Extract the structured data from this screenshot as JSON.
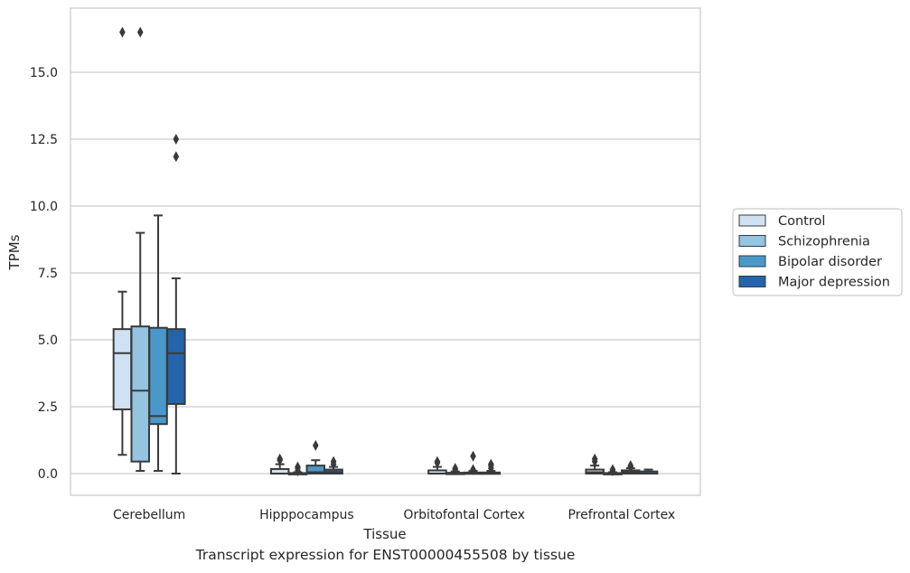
{
  "caption": "Transcript expression for ENST00000455508 by tissue",
  "chart_data": {
    "type": "box",
    "xlabel": "Tissue",
    "ylabel": "TPMs",
    "categories": [
      "Cerebellum",
      "Hipppocampus",
      "Orbitofontal Cortex",
      "Prefrontal Cortex"
    ],
    "yticks": [
      "0.0",
      "2.5",
      "5.0",
      "7.5",
      "10.0",
      "12.5",
      "15.0"
    ],
    "ytick_values": [
      0,
      2.5,
      5,
      7.5,
      10,
      12.5,
      15
    ],
    "ylim": [
      -0.8,
      17.3
    ],
    "grid": true,
    "legend_position": "right",
    "series": [
      {
        "name": "Control",
        "color": "#d0e1f2",
        "boxes": [
          {
            "whisker_low": 0.7,
            "q1": 2.4,
            "median": 4.5,
            "q3": 5.4,
            "whisker_high": 6.8,
            "outliers": [
              16.5
            ]
          },
          {
            "whisker_low": 0.0,
            "q1": 0.0,
            "median": 0.0,
            "q3": 0.17,
            "whisker_high": 0.35,
            "outliers": [
              0.5,
              0.55
            ]
          },
          {
            "whisker_low": 0.0,
            "q1": 0.0,
            "median": 0.0,
            "q3": 0.12,
            "whisker_high": 0.25,
            "outliers": [
              0.4,
              0.45
            ]
          },
          {
            "whisker_low": 0.0,
            "q1": 0.0,
            "median": 0.05,
            "q3": 0.15,
            "whisker_high": 0.3,
            "outliers": [
              0.45,
              0.55
            ]
          }
        ]
      },
      {
        "name": "Schizophrenia",
        "color": "#94c4df",
        "boxes": [
          {
            "whisker_low": 0.1,
            "q1": 0.45,
            "median": 3.1,
            "q3": 5.5,
            "whisker_high": 9.0,
            "outliers": [
              16.5
            ]
          },
          {
            "whisker_low": 0.0,
            "q1": 0.0,
            "median": 0.0,
            "q3": 0.02,
            "whisker_high": 0.05,
            "outliers": [
              0.1,
              0.2,
              0.25
            ]
          },
          {
            "whisker_low": 0.0,
            "q1": 0.0,
            "median": 0.0,
            "q3": 0.03,
            "whisker_high": 0.08,
            "outliers": [
              0.15,
              0.2
            ]
          },
          {
            "whisker_low": 0.0,
            "q1": 0.0,
            "median": 0.0,
            "q3": 0.02,
            "whisker_high": 0.05,
            "outliers": [
              0.1,
              0.15
            ]
          }
        ]
      },
      {
        "name": "Bipolar disorder",
        "color": "#4a98c9",
        "boxes": [
          {
            "whisker_low": 0.1,
            "q1": 1.85,
            "median": 2.15,
            "q3": 5.45,
            "whisker_high": 9.65,
            "outliers": []
          },
          {
            "whisker_low": 0.0,
            "q1": 0.0,
            "median": 0.05,
            "q3": 0.3,
            "whisker_high": 0.5,
            "outliers": [
              1.05
            ]
          },
          {
            "whisker_low": 0.0,
            "q1": 0.0,
            "median": 0.0,
            "q3": 0.04,
            "whisker_high": 0.1,
            "outliers": [
              0.15,
              0.65
            ]
          },
          {
            "whisker_low": 0.0,
            "q1": 0.0,
            "median": 0.05,
            "q3": 0.12,
            "whisker_high": 0.2,
            "outliers": [
              0.25,
              0.3
            ]
          }
        ]
      },
      {
        "name": "Major depression",
        "color": "#2364aa",
        "boxes": [
          {
            "whisker_low": 0.0,
            "q1": 2.6,
            "median": 4.5,
            "q3": 5.4,
            "whisker_high": 7.3,
            "outliers": [
              11.85,
              12.5
            ]
          },
          {
            "whisker_low": 0.0,
            "q1": 0.0,
            "median": 0.05,
            "q3": 0.15,
            "whisker_high": 0.25,
            "outliers": [
              0.35,
              0.45
            ]
          },
          {
            "whisker_low": 0.0,
            "q1": 0.0,
            "median": 0.0,
            "q3": 0.04,
            "whisker_high": 0.1,
            "outliers": [
              0.2,
              0.3,
              0.35
            ]
          },
          {
            "whisker_low": 0.0,
            "q1": 0.0,
            "median": 0.0,
            "q3": 0.08,
            "whisker_high": 0.15,
            "outliers": []
          }
        ]
      }
    ]
  }
}
